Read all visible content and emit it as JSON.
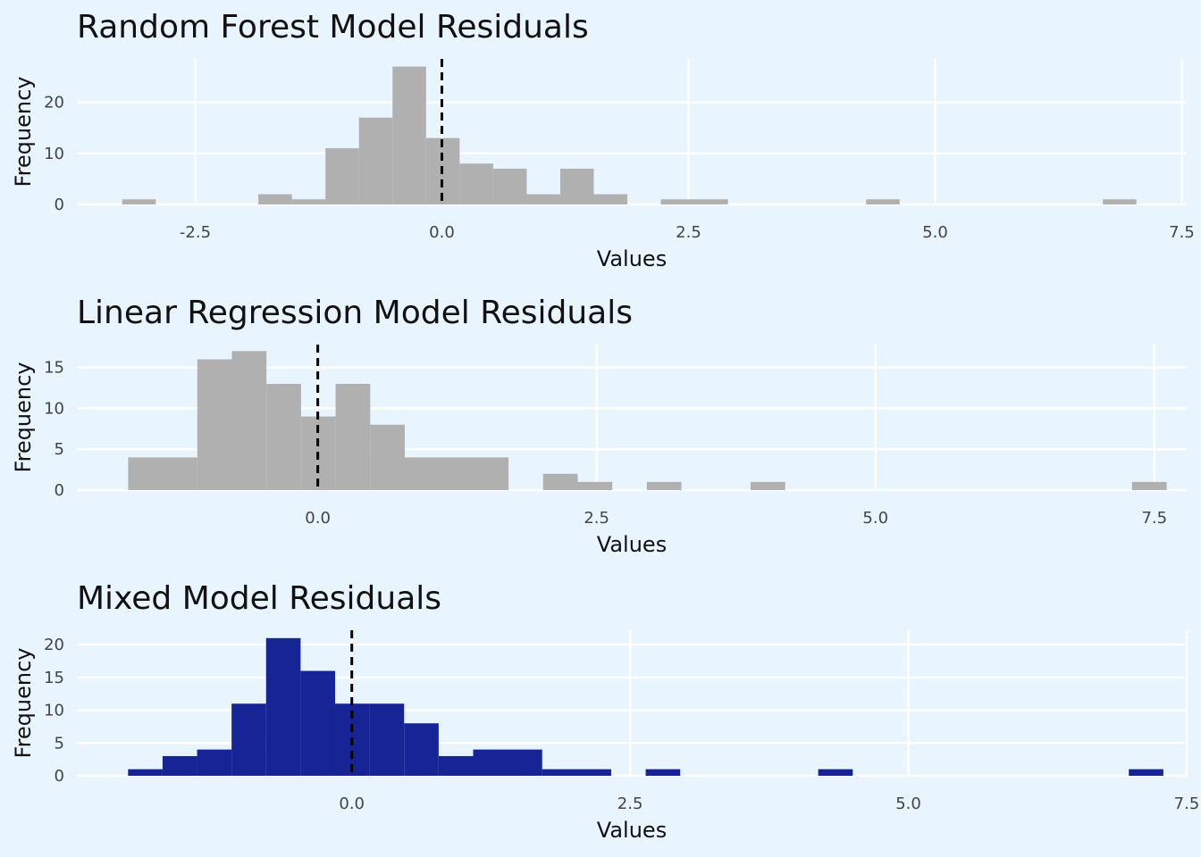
{
  "chart_data": [
    {
      "type": "bar",
      "title": "Random Forest Model Residuals",
      "xlabel": "Values",
      "ylabel": "Frequency",
      "fill": "#b0b0b0",
      "reference_line_x": 0,
      "xticks": [
        -2.5,
        0,
        2.5,
        5,
        7.5
      ],
      "xtick_labels": [
        "-2.5",
        "0.0",
        "2.5",
        "5.0",
        "7.5"
      ],
      "yticks": [
        0,
        10,
        20
      ],
      "xlim": [
        -3.7,
        7.55
      ],
      "ylim": [
        0,
        28.5
      ],
      "bin_width": 0.34,
      "bins_start": [
        -3.24,
        -1.86,
        -1.52,
        -1.18,
        -0.84,
        -0.5,
        -0.16,
        0.18,
        0.52,
        0.86,
        1.2,
        1.54,
        2.22,
        2.56,
        4.3,
        6.7
      ],
      "counts": [
        1,
        2,
        1,
        11,
        17,
        27,
        13,
        8,
        7,
        2,
        7,
        2,
        1,
        1,
        1,
        1
      ]
    },
    {
      "type": "bar",
      "title": "Linear Regression Model Residuals",
      "xlabel": "Values",
      "ylabel": "Frequency",
      "fill": "#b0b0b0",
      "reference_line_x": 0,
      "xticks": [
        0,
        2.5,
        5,
        7.5
      ],
      "xtick_labels": [
        "0.0",
        "2.5",
        "5.0",
        "7.5"
      ],
      "yticks": [
        0,
        5,
        10,
        15
      ],
      "xlim": [
        -2.16,
        7.79
      ],
      "ylim": [
        0,
        17.8
      ],
      "bin_width": 0.31,
      "bins_start": [
        -1.7,
        -1.08,
        -0.77,
        -0.46,
        -0.15,
        0.16,
        0.47,
        0.78,
        2.02,
        2.33,
        2.95,
        3.88,
        7.3
      ],
      "bins_width": [
        0.62,
        0.31,
        0.31,
        0.31,
        0.31,
        0.31,
        0.31,
        0.93,
        0.31,
        0.31,
        0.31,
        0.31,
        0.31
      ],
      "counts": [
        4,
        16,
        17,
        13,
        9,
        13,
        8,
        4,
        2,
        1,
        1,
        1,
        1
      ]
    },
    {
      "type": "bar",
      "title": "Mixed Model Residuals",
      "xlabel": "Values",
      "ylabel": "Frequency",
      "fill": "#162496",
      "reference_line_x": 0,
      "xticks": [
        0,
        2.5,
        5,
        7.5
      ],
      "xtick_labels": [
        "0.0",
        "2.5",
        "5.0",
        "7.5"
      ],
      "yticks": [
        0,
        5,
        10,
        15,
        20
      ],
      "xlim": [
        -2.47,
        7.5
      ],
      "ylim": [
        0,
        22.2
      ],
      "bin_width": 0.31,
      "bins_start": [
        -2.01,
        -1.7,
        -1.39,
        -1.08,
        -0.77,
        -0.46,
        -0.15,
        0.16,
        0.47,
        0.78,
        1.09,
        1.71,
        2.64,
        4.19,
        6.98
      ],
      "bins_width": [
        0.31,
        0.31,
        0.31,
        0.31,
        0.31,
        0.31,
        0.31,
        0.31,
        0.31,
        0.31,
        0.62,
        0.62,
        0.31,
        0.31,
        0.31
      ],
      "counts": [
        1,
        3,
        4,
        11,
        21,
        16,
        11,
        11,
        8,
        3,
        4,
        1,
        1,
        1,
        1
      ]
    }
  ]
}
